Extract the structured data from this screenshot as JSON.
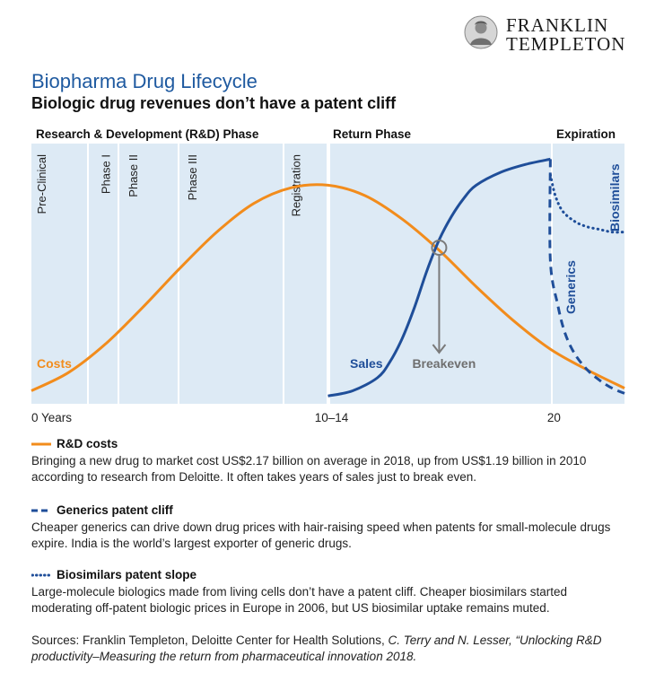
{
  "brand": {
    "line1": "FRANKLIN",
    "line2": "TEMPLETON",
    "seal_icon": "portrait-seal-icon"
  },
  "header": {
    "title": "Biopharma Drug Lifecycle",
    "subtitle": "Biologic drug revenues don’t have a patent cliff"
  },
  "phases": {
    "rd": "Research & Development (R&D) Phase",
    "return": "Return Phase",
    "expiration": "Expiration"
  },
  "chart_data": {
    "type": "line",
    "xlim": [
      0,
      24
    ],
    "x_ticks": [
      {
        "value": 0,
        "label": "0 Years"
      },
      {
        "value": 12,
        "label": "10–14"
      },
      {
        "value": 21,
        "label": "20"
      }
    ],
    "stage_labels": [
      {
        "label": "Pre-Clinical",
        "x": 0
      },
      {
        "label": "Phase I",
        "x": 2.6
      },
      {
        "label": "Phase II",
        "x": 3.7
      },
      {
        "label": "Phase III",
        "x": 6.1
      },
      {
        "label": "Registration",
        "x": 10.3
      }
    ],
    "series": [
      {
        "name": "Costs",
        "style": "solid",
        "color": "#f28c1c",
        "x": [
          0,
          1.5,
          3,
          4.5,
          6,
          7.5,
          9,
          10.5,
          12,
          13.5,
          15,
          16.5,
          18,
          19.5,
          21,
          22.5,
          24
        ],
        "y": [
          0.05,
          0.12,
          0.23,
          0.37,
          0.52,
          0.66,
          0.77,
          0.83,
          0.84,
          0.8,
          0.71,
          0.59,
          0.45,
          0.32,
          0.21,
          0.13,
          0.06
        ]
      },
      {
        "name": "Sales",
        "style": "solid",
        "color": "#1f4e99",
        "x": [
          12,
          13,
          14,
          14.5,
          15,
          15.5,
          16,
          16.5,
          17,
          17.5,
          18,
          19,
          20,
          21
        ],
        "y": [
          0.03,
          0.05,
          0.1,
          0.16,
          0.25,
          0.37,
          0.51,
          0.63,
          0.72,
          0.79,
          0.84,
          0.89,
          0.92,
          0.94
        ]
      },
      {
        "name": "Generics",
        "style": "dashed",
        "color": "#1f4e99",
        "x": [
          21,
          21,
          21.3,
          21.6,
          22,
          22.5,
          23,
          23.5,
          24
        ],
        "y": [
          0.94,
          0.55,
          0.38,
          0.27,
          0.19,
          0.13,
          0.09,
          0.06,
          0.04
        ]
      },
      {
        "name": "Biosimilars",
        "style": "dotted",
        "color": "#1f4e99",
        "x": [
          21,
          21.2,
          21.5,
          22,
          22.5,
          23,
          23.5,
          24
        ],
        "y": [
          0.88,
          0.8,
          0.74,
          0.7,
          0.68,
          0.67,
          0.66,
          0.66
        ]
      }
    ],
    "breakeven": {
      "label": "Breakeven",
      "x": 16.5,
      "y": 0.6,
      "arrow_to": 0.2
    }
  },
  "legend": [
    {
      "key": "rd",
      "style": "solid",
      "color": "#f28c1c",
      "title": "R&D costs",
      "body": "Bringing a new drug to market cost US$2.17 billion on average in 2018, up from US$1.19 billion in 2010 according to research from Deloitte. It often takes years of sales just to break even."
    },
    {
      "key": "generics",
      "style": "dashed",
      "color": "#1f4e99",
      "title": "Generics patent cliff",
      "body": "Cheaper generics can drive down drug prices with hair-raising speed when patents for small-molecule drugs expire. India is the world’s largest exporter of generic drugs."
    },
    {
      "key": "biosimilars",
      "style": "dotted",
      "color": "#1f4e99",
      "title": "Biosimilars patent slope",
      "body": "Large-molecule biologics made from living cells don’t have a patent cliff. Cheaper biosimilars started moderating off-patent biologic prices in Europe in 2006, but US biosimilar uptake remains muted."
    }
  ],
  "sources": {
    "prefix": "Sources: Franklin Templeton, Deloitte Center for Health Solutions, ",
    "italic": "C. Terry and N. Lesser, “Unlocking R&D productivity–Measuring the return from pharmaceutical innovation 2018."
  }
}
